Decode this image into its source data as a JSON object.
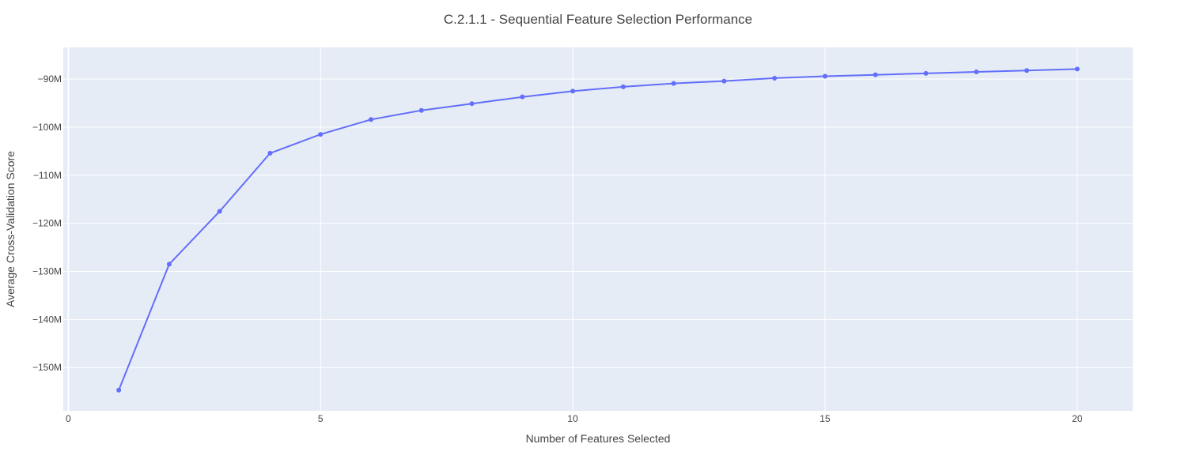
{
  "chart_data": {
    "type": "line",
    "title": "C.2.1.1 - Sequential Feature Selection Performance",
    "xlabel": "Number of Features Selected",
    "ylabel": "Average Cross-Validation Score",
    "xlim": [
      -0.1,
      21.1
    ],
    "ylim": [
      -159.0,
      -83.4
    ],
    "x_ticks": [
      0,
      5,
      10,
      15,
      20
    ],
    "x_tick_labels": [
      "0",
      "5",
      "10",
      "15",
      "20"
    ],
    "y_ticks": [
      -150,
      -140,
      -130,
      -120,
      -110,
      -100,
      -90
    ],
    "y_tick_labels": [
      "−150M",
      "−140M",
      "−130M",
      "−120M",
      "−110M",
      "−100M",
      "−90M"
    ],
    "grid": true,
    "y_unit": "millions",
    "series": [
      {
        "x": [
          1,
          2,
          3,
          4,
          5,
          6,
          7,
          8,
          9,
          10,
          11,
          12,
          13,
          14,
          15,
          16,
          17,
          18,
          19,
          20
        ],
        "values": [
          -154.7,
          -128.5,
          -117.5,
          -105.4,
          -101.5,
          -98.4,
          -96.5,
          -95.1,
          -93.7,
          -92.5,
          -91.6,
          -90.9,
          -90.4,
          -89.8,
          -89.4,
          -89.1,
          -88.8,
          -88.5,
          -88.2,
          -87.9
        ]
      }
    ],
    "colors": {
      "line": "#636efa",
      "plot_bg": "#e5ecf6",
      "grid": "#ffffff",
      "text": "#444444"
    }
  }
}
